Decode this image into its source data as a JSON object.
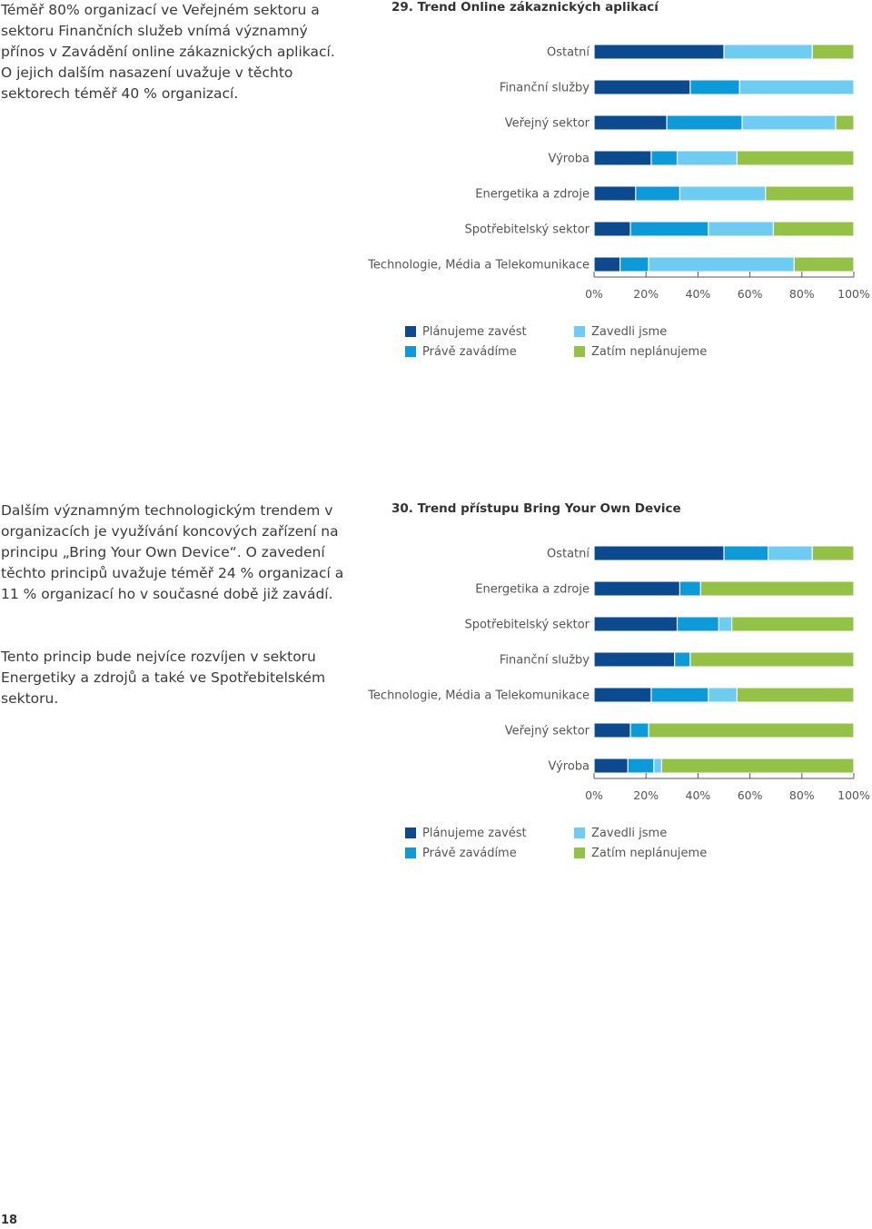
{
  "colors": {
    "planned": "#0b4a8f",
    "implementing": "#0d9ad8",
    "implemented": "#6ecbf2",
    "not_planned": "#93c247"
  },
  "text": {
    "p1": "Téměř 80% organizací ve Veřejném sektoru a sektoru Finančních služeb vnímá významný přínos v Zavádění online zákaznických aplikací. O jejich dalším nasazení uvažuje v těchto sektorech téměř 40 % organizací.",
    "p2": "Dalším významným technologickým trendem v organizacích je využívání koncových zařízení na principu „Bring Your Own Device“. O zavedení těchto principů uvažuje téměř 24 % organizací a 11 % organizací ho v současné době již zavádí.",
    "p3": "Tento princip bude nejvíce rozvíjen v sektoru Energetiky a zdrojů a také ve Spotřebitelském sektoru.",
    "page_number": "18"
  },
  "chart_data": [
    {
      "type": "bar",
      "orientation": "horizontal",
      "stacked": true,
      "title": "29. Trend Online zákaznických aplikací",
      "categories": [
        "Ostatní",
        "Finanční služby",
        "Veřejný sektor",
        "Výroba",
        "Energetika a zdroje",
        "Spotřebitelský sektor",
        "Technologie, Média a Telekomunikace"
      ],
      "series": [
        {
          "name": "Plánujeme zavést",
          "values": [
            50,
            37,
            28,
            22,
            16,
            14,
            10
          ]
        },
        {
          "name": "Právě zavádíme",
          "values": [
            0,
            19,
            29,
            10,
            17,
            30,
            11
          ]
        },
        {
          "name": "Zavedli jsme",
          "values": [
            34,
            44,
            36,
            23,
            33,
            25,
            56
          ]
        },
        {
          "name": "Zatím neplánujeme",
          "values": [
            16,
            0,
            7,
            45,
            34,
            31,
            23
          ]
        }
      ],
      "xlim": [
        0,
        100
      ],
      "x_ticks": [
        "0%",
        "20%",
        "40%",
        "60%",
        "80%",
        "100%"
      ],
      "legend": "bottom"
    },
    {
      "type": "bar",
      "orientation": "horizontal",
      "stacked": true,
      "title": "30. Trend přístupu Bring Your Own Device",
      "categories": [
        "Ostatní",
        "Energetika a zdroje",
        "Spotřebitelský sektor",
        "Finanční služby",
        "Technologie, Média a Telekomunikace",
        "Veřejný sektor",
        "Výroba"
      ],
      "series": [
        {
          "name": "Plánujeme zavést",
          "values": [
            50,
            33,
            32,
            31,
            22,
            14,
            13
          ]
        },
        {
          "name": "Právě zavádíme",
          "values": [
            17,
            8,
            16,
            6,
            22,
            7,
            10
          ]
        },
        {
          "name": "Zavedli jsme",
          "values": [
            17,
            0,
            5,
            0,
            11,
            0,
            3
          ]
        },
        {
          "name": "Zatím neplánujeme",
          "values": [
            16,
            59,
            47,
            63,
            45,
            79,
            74
          ]
        }
      ],
      "xlim": [
        0,
        100
      ],
      "x_ticks": [
        "0%",
        "20%",
        "40%",
        "60%",
        "80%",
        "100%"
      ],
      "legend": "bottom"
    }
  ]
}
